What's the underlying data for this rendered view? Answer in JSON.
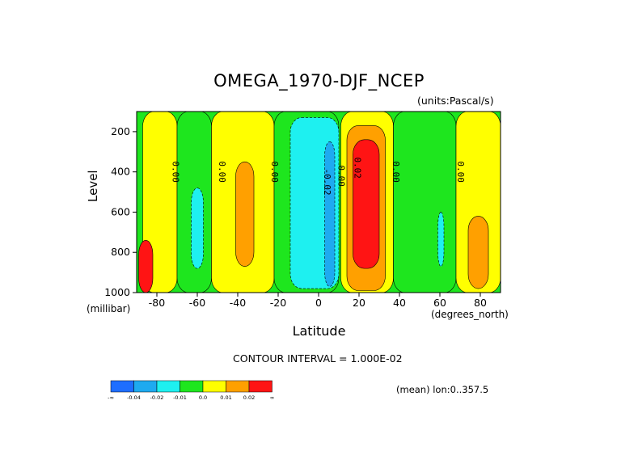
{
  "chart_data": {
    "type": "heatmap",
    "title": "OMEGA_1970-DJF_NCEP",
    "units": "(units:Pascal/s)",
    "xlabel": "Latitude",
    "x_units": "(degrees_north)",
    "ylabel": "Level",
    "y_units": "(millibar)",
    "xlim": [
      -90,
      90
    ],
    "ylim": [
      1000,
      100
    ],
    "x_ticks": [
      "-80",
      "-60",
      "-40",
      "-20",
      "0",
      "20",
      "40",
      "60",
      "80"
    ],
    "x_tick_values": [
      -80,
      -60,
      -40,
      -20,
      0,
      20,
      40,
      60,
      80
    ],
    "y_ticks": [
      "200",
      "400",
      "600",
      "800",
      "1000"
    ],
    "y_tick_values": [
      200,
      400,
      600,
      800,
      1000
    ],
    "contour_labels": [
      {
        "text": "0.00",
        "lat": -71,
        "level": 400
      },
      {
        "text": "0.00",
        "lat": -48,
        "level": 400
      },
      {
        "text": "0.00",
        "lat": -22,
        "level": 400
      },
      {
        "text": "-0.02",
        "lat": 4,
        "level": 450
      },
      {
        "text": "0.00",
        "lat": 11,
        "level": 420
      },
      {
        "text": "0.02",
        "lat": 19,
        "level": 380
      },
      {
        "text": "0.00",
        "lat": 38,
        "level": 400
      },
      {
        "text": "0.00",
        "lat": 70,
        "level": 400
      }
    ],
    "contour_interval_text": "CONTOUR INTERVAL = 1.000E-02",
    "mean_text": "(mean) lon:0..357.5",
    "colorbar": {
      "colors": [
        "#1e6eff",
        "#1eaaf0",
        "#1ef0f0",
        "#1ee61e",
        "#ffff00",
        "#ffa000",
        "#ff1414"
      ],
      "labels": [
        "-∞",
        "-0.04",
        "-0.02",
        "-0.01",
        "0.0",
        "0.01",
        "0.02",
        "∞"
      ]
    },
    "regions": [
      {
        "band": "yellow",
        "lat": [
          -87,
          -70
        ],
        "level": [
          100,
          1000
        ]
      },
      {
        "band": "green",
        "lat": [
          -70,
          -53
        ],
        "level": [
          100,
          1000
        ]
      },
      {
        "band": "cyan",
        "lat": [
          -63,
          -57
        ],
        "level": [
          480,
          880
        ]
      },
      {
        "band": "yellow",
        "lat": [
          -53,
          -22
        ],
        "level": [
          100,
          1000
        ]
      },
      {
        "band": "orange",
        "lat": [
          -41,
          -32
        ],
        "level": [
          350,
          870
        ]
      },
      {
        "band": "green",
        "lat": [
          -22,
          10
        ],
        "level": [
          100,
          1000
        ]
      },
      {
        "band": "cyan",
        "lat": [
          -14,
          10
        ],
        "level": [
          130,
          980
        ]
      },
      {
        "band": "blue",
        "lat": [
          3,
          8
        ],
        "level": [
          250,
          970
        ]
      },
      {
        "band": "yellow",
        "lat": [
          11,
          37
        ],
        "level": [
          100,
          1000
        ]
      },
      {
        "band": "orange",
        "lat": [
          14,
          33
        ],
        "level": [
          170,
          990
        ]
      },
      {
        "band": "red",
        "lat": [
          17,
          30
        ],
        "level": [
          240,
          880
        ]
      },
      {
        "band": "green",
        "lat": [
          37,
          68
        ],
        "level": [
          100,
          1000
        ]
      },
      {
        "band": "cyan",
        "lat": [
          59,
          62
        ],
        "level": [
          600,
          870
        ]
      },
      {
        "band": "yellow",
        "lat": [
          68,
          90
        ],
        "level": [
          100,
          1000
        ]
      },
      {
        "band": "orange",
        "lat": [
          74,
          84
        ],
        "level": [
          620,
          980
        ]
      },
      {
        "band": "red",
        "lat": [
          -89,
          -82
        ],
        "level": [
          740,
          1000
        ]
      }
    ]
  }
}
